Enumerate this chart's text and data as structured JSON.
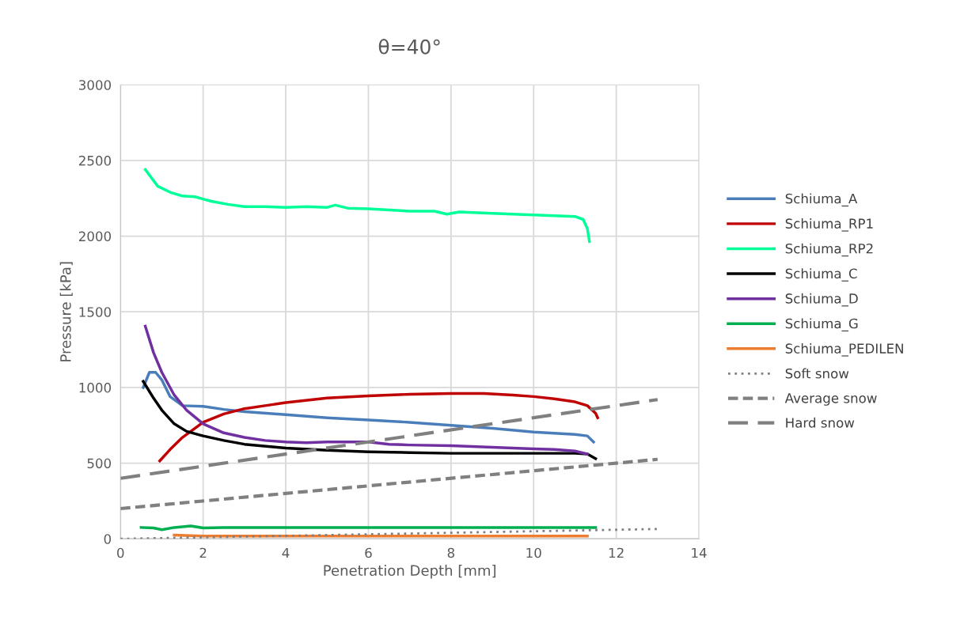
{
  "chart_data": {
    "type": "line",
    "title": "θ=40°",
    "xlabel": "Penetration Depth [mm]",
    "ylabel": "Pressure [kPa]",
    "xlim": [
      0,
      14
    ],
    "xticks": [
      0,
      2,
      4,
      6,
      8,
      10,
      12,
      14
    ],
    "ylim": [
      0,
      3000
    ],
    "yticks": [
      0,
      500,
      1000,
      1500,
      2000,
      2500,
      3000
    ],
    "grid": true,
    "legend": "right",
    "series": [
      {
        "name": "Schiuma_A",
        "color": "#4a7ebb",
        "line_style": "solid",
        "x": [
          0.55,
          0.7,
          0.85,
          1.0,
          1.2,
          1.5,
          2,
          2.5,
          3,
          4,
          5,
          6,
          7,
          8,
          9,
          10,
          11,
          11.3,
          11.45
        ],
        "values": [
          1000,
          1100,
          1100,
          1050,
          940,
          880,
          875,
          855,
          840,
          820,
          800,
          785,
          770,
          750,
          730,
          705,
          690,
          680,
          640
        ]
      },
      {
        "name": "Schiuma_RP1",
        "color": "#c00000",
        "line_style": "solid",
        "x": [
          0.95,
          1.2,
          1.5,
          2,
          2.5,
          3,
          3.5,
          4,
          5,
          6,
          7,
          8,
          8.8,
          9.5,
          10,
          10.5,
          11,
          11.3,
          11.5,
          11.55
        ],
        "values": [
          515,
          590,
          670,
          770,
          825,
          860,
          880,
          900,
          930,
          945,
          955,
          960,
          960,
          950,
          940,
          925,
          905,
          880,
          830,
          800
        ]
      },
      {
        "name": "Schiuma_RP2",
        "color": "#00ff99",
        "line_style": "solid",
        "x": [
          0.6,
          0.9,
          1.2,
          1.5,
          1.8,
          2.2,
          2.6,
          3,
          3.5,
          4,
          4.5,
          5,
          5.2,
          5.5,
          6,
          7,
          7.6,
          7.9,
          8.2,
          9,
          10,
          10.5,
          11,
          11.2,
          11.3,
          11.35
        ],
        "values": [
          2440,
          2330,
          2290,
          2265,
          2260,
          2230,
          2210,
          2195,
          2195,
          2190,
          2195,
          2190,
          2205,
          2185,
          2180,
          2165,
          2165,
          2145,
          2160,
          2150,
          2140,
          2135,
          2130,
          2110,
          2050,
          1965
        ]
      },
      {
        "name": "Schiuma_C",
        "color": "#000000",
        "line_style": "solid",
        "x": [
          0.55,
          0.8,
          1.0,
          1.3,
          1.6,
          2,
          2.5,
          3,
          4,
          5,
          6,
          7,
          8,
          9,
          10,
          11,
          11.3,
          11.5
        ],
        "values": [
          1040,
          930,
          850,
          760,
          710,
          680,
          650,
          625,
          600,
          585,
          575,
          570,
          565,
          565,
          565,
          565,
          560,
          530
        ]
      },
      {
        "name": "Schiuma_D",
        "color": "#7030a0",
        "line_style": "solid",
        "x": [
          0.6,
          0.8,
          1.0,
          1.3,
          1.6,
          2,
          2.5,
          3,
          3.5,
          4,
          4.5,
          5,
          6,
          6.5,
          7,
          8,
          9,
          10,
          10.5,
          11,
          11.3
        ],
        "values": [
          1405,
          1230,
          1100,
          950,
          850,
          760,
          700,
          670,
          650,
          640,
          635,
          640,
          640,
          625,
          620,
          615,
          605,
          595,
          590,
          580,
          560
        ]
      },
      {
        "name": "Schiuma_G",
        "color": "#00b050",
        "line_style": "solid",
        "x": [
          0.5,
          0.8,
          1,
          1.3,
          1.7,
          2,
          2.5,
          3,
          4,
          6,
          8,
          10,
          11.5
        ],
        "values": [
          75,
          72,
          60,
          75,
          85,
          72,
          75,
          75,
          75,
          75,
          75,
          75,
          75
        ]
      },
      {
        "name": "Schiuma_PEDILEN",
        "color": "#ed7d31",
        "line_style": "solid",
        "x": [
          1.3,
          2,
          4,
          6,
          8,
          10,
          11.3
        ],
        "values": [
          25,
          18,
          18,
          18,
          18,
          18,
          18
        ]
      },
      {
        "name": "Soft snow",
        "color": "#808080",
        "line_style": "dotted",
        "x": [
          0,
          13
        ],
        "values": [
          0,
          65
        ]
      },
      {
        "name": "Average snow",
        "color": "#808080",
        "line_style": "dashed",
        "x": [
          0,
          13
        ],
        "values": [
          200,
          525
        ]
      },
      {
        "name": "Hard snow",
        "color": "#808080",
        "line_style": "longdash",
        "x": [
          0,
          13
        ],
        "values": [
          400,
          920
        ]
      }
    ]
  }
}
